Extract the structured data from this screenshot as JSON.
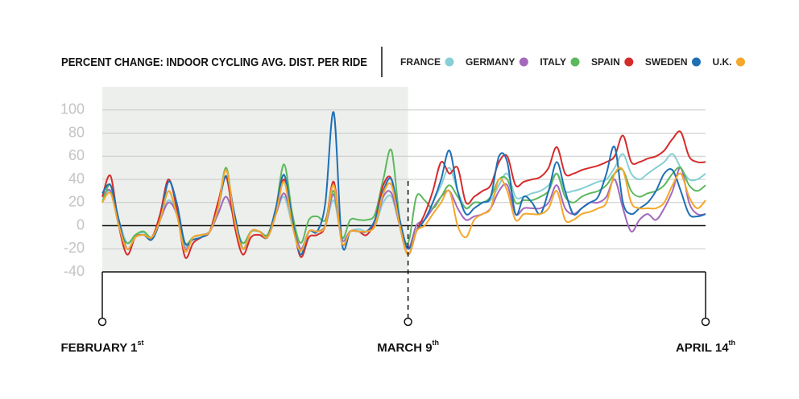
{
  "chart_data": {
    "type": "line",
    "title": "PERCENT CHANGE: INDOOR CYCLING AVG. DIST. PER RIDE",
    "categories": [
      "FEBRUARY 1",
      null,
      null,
      null,
      null,
      null,
      null,
      null,
      null,
      null,
      null,
      null,
      null,
      null,
      null,
      null,
      null,
      null,
      null,
      null,
      null,
      null,
      null,
      null,
      null,
      null,
      null,
      null,
      null,
      null,
      null,
      null,
      null,
      null,
      null,
      null,
      null,
      "MARCH 9",
      null,
      null,
      null,
      null,
      null,
      null,
      null,
      null,
      null,
      null,
      null,
      null,
      null,
      null,
      null,
      null,
      null,
      null,
      null,
      null,
      null,
      null,
      null,
      null,
      null,
      null,
      null,
      null,
      null,
      null,
      null,
      null,
      null,
      null,
      null,
      "APRIL 14"
    ],
    "category_suffixes": [
      "st",
      null,
      null,
      null,
      null,
      null,
      null,
      null,
      null,
      null,
      null,
      null,
      null,
      null,
      null,
      null,
      null,
      null,
      null,
      null,
      null,
      null,
      null,
      null,
      null,
      null,
      null,
      null,
      null,
      null,
      null,
      null,
      null,
      null,
      null,
      null,
      null,
      "th",
      null,
      null,
      null,
      null,
      null,
      null,
      null,
      null,
      null,
      null,
      null,
      null,
      null,
      null,
      null,
      null,
      null,
      null,
      null,
      null,
      null,
      null,
      null,
      null,
      null,
      null,
      null,
      null,
      null,
      null,
      null,
      null,
      null,
      null,
      null,
      "th"
    ],
    "ylim": [
      -40,
      120
    ],
    "yticks": [
      -40,
      -20,
      0,
      20,
      40,
      60,
      80,
      100
    ],
    "grid": true,
    "series": [
      {
        "name": "FRANCE",
        "color": "#86cfd6",
        "values": [
          22,
          30,
          5,
          -15,
          -8,
          -6,
          -10,
          5,
          22,
          10,
          -18,
          -10,
          -8,
          -5,
          10,
          25,
          5,
          -15,
          -5,
          -5,
          -8,
          10,
          25,
          0,
          -20,
          -5,
          -5,
          0,
          22,
          -10,
          -5,
          -3,
          -5,
          0,
          20,
          25,
          0,
          -20,
          0,
          5,
          20,
          35,
          50,
          30,
          15,
          20,
          20,
          22,
          35,
          45,
          25,
          25,
          28,
          30,
          35,
          45,
          30,
          30,
          32,
          35,
          38,
          40,
          50,
          62,
          45,
          40,
          45,
          50,
          55,
          62,
          50,
          40,
          40,
          45
        ]
      },
      {
        "name": "GERMANY",
        "color": "#a469bd",
        "values": [
          25,
          30,
          0,
          -20,
          -10,
          -8,
          -10,
          5,
          20,
          10,
          -20,
          -10,
          -8,
          -5,
          10,
          25,
          5,
          -20,
          -5,
          -5,
          -8,
          10,
          28,
          5,
          -20,
          -5,
          -5,
          0,
          27,
          -12,
          -5,
          -5,
          -5,
          0,
          25,
          28,
          0,
          -20,
          0,
          5,
          15,
          25,
          30,
          15,
          5,
          8,
          10,
          15,
          30,
          35,
          10,
          15,
          15,
          15,
          20,
          35,
          15,
          10,
          15,
          20,
          20,
          25,
          40,
          15,
          -5,
          5,
          10,
          5,
          15,
          30,
          50,
          20,
          10,
          10
        ]
      },
      {
        "name": "ITALY",
        "color": "#5cb85c",
        "values": [
          20,
          35,
          0,
          -15,
          -8,
          -5,
          -10,
          5,
          30,
          10,
          -15,
          -10,
          -8,
          -5,
          15,
          50,
          5,
          -15,
          -5,
          -5,
          -8,
          15,
          53,
          10,
          -15,
          5,
          8,
          5,
          30,
          -10,
          5,
          5,
          5,
          10,
          40,
          65,
          5,
          -15,
          25,
          22,
          15,
          25,
          35,
          25,
          15,
          20,
          20,
          25,
          40,
          40,
          20,
          22,
          22,
          25,
          30,
          45,
          25,
          20,
          25,
          28,
          30,
          35,
          45,
          48,
          30,
          25,
          28,
          30,
          35,
          45,
          50,
          35,
          30,
          35
        ]
      },
      {
        "name": "SPAIN",
        "color": "#d62b2b",
        "values": [
          25,
          43,
          0,
          -25,
          -10,
          -8,
          -10,
          10,
          40,
          15,
          -27,
          -15,
          -10,
          -5,
          20,
          42,
          0,
          -25,
          -10,
          -8,
          -10,
          10,
          40,
          5,
          -27,
          -10,
          -8,
          0,
          38,
          -15,
          -5,
          -5,
          -8,
          5,
          35,
          40,
          0,
          -25,
          -5,
          10,
          30,
          55,
          45,
          50,
          20,
          25,
          30,
          35,
          55,
          60,
          35,
          38,
          40,
          42,
          50,
          68,
          45,
          45,
          48,
          50,
          52,
          55,
          60,
          78,
          55,
          55,
          58,
          60,
          65,
          75,
          81,
          60,
          55,
          55
        ]
      },
      {
        "name": "SWEDEN",
        "color": "#1f6fb5",
        "values": [
          28,
          35,
          5,
          -20,
          -10,
          -8,
          -12,
          5,
          38,
          20,
          -15,
          -12,
          -10,
          -5,
          15,
          43,
          10,
          -20,
          -5,
          -5,
          -10,
          15,
          44,
          5,
          -25,
          -5,
          -5,
          20,
          98,
          -15,
          -5,
          -5,
          -5,
          5,
          30,
          40,
          5,
          -20,
          -5,
          5,
          20,
          40,
          65,
          30,
          10,
          15,
          20,
          25,
          60,
          55,
          10,
          25,
          20,
          10,
          30,
          55,
          30,
          10,
          15,
          20,
          25,
          45,
          68,
          20,
          10,
          15,
          20,
          30,
          45,
          48,
          30,
          10,
          8,
          10
        ]
      },
      {
        "name": "U.K.",
        "color": "#f5a72a",
        "values": [
          20,
          28,
          0,
          -20,
          -10,
          -8,
          -10,
          5,
          30,
          10,
          -22,
          -10,
          -8,
          -5,
          15,
          48,
          5,
          -20,
          -5,
          -5,
          -10,
          10,
          38,
          0,
          -22,
          -5,
          -5,
          0,
          35,
          -15,
          -5,
          -5,
          -5,
          0,
          28,
          35,
          0,
          -25,
          -5,
          0,
          10,
          20,
          30,
          0,
          -10,
          5,
          10,
          15,
          40,
          30,
          5,
          10,
          10,
          10,
          15,
          30,
          5,
          5,
          10,
          12,
          15,
          20,
          45,
          48,
          20,
          15,
          15,
          15,
          20,
          35,
          45,
          25,
          15,
          22
        ]
      }
    ]
  }
}
